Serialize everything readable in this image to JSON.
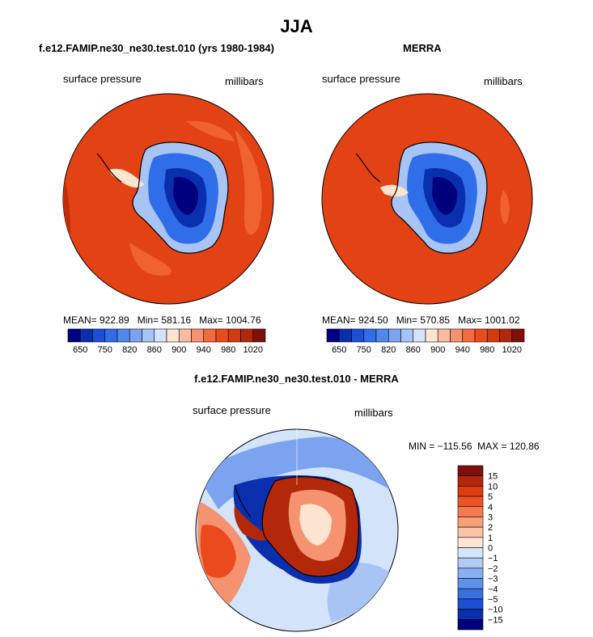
{
  "header": {
    "title": "JJA"
  },
  "panels": {
    "left": {
      "title": "f.e12.FAMIP.ne30_ne30.test.010 (yrs 1980-1984)",
      "label_left": "surface pressure",
      "label_right": "millibars",
      "stats": "MEAN= 922.89   Min= 581.16   Max= 1004.76"
    },
    "right": {
      "title": "MERRA",
      "label_left": "surface pressure",
      "label_right": "millibars",
      "stats": "MEAN= 924.50   Min= 570.85   Max= 1001.02"
    },
    "bottom": {
      "title": "f.e12.FAMIP.ne30_ne30.test.010 - MERRA",
      "label_left": "surface pressure",
      "label_right": "millibars",
      "stats": "MIN = −115.56  MAX = 120.86"
    }
  },
  "chart_data": [
    {
      "type": "heatmap",
      "title": "f.e12.FAMIP.ne30_ne30.test.010 (yrs 1980-1984)",
      "variable": "surface pressure",
      "units": "millibars",
      "mean": 922.89,
      "min": 581.16,
      "max": 1004.76,
      "colorbar_levels": [
        650,
        700,
        750,
        800,
        820,
        840,
        860,
        880,
        900,
        920,
        940,
        960,
        980,
        1000,
        1020
      ],
      "colorbar_tick_labels": [
        "650",
        "750",
        "820",
        "860",
        "900",
        "940",
        "980",
        "1020"
      ]
    },
    {
      "type": "heatmap",
      "title": "MERRA",
      "variable": "surface pressure",
      "units": "millibars",
      "mean": 924.5,
      "min": 570.85,
      "max": 1001.02,
      "colorbar_levels": [
        650,
        700,
        750,
        800,
        820,
        840,
        860,
        880,
        900,
        920,
        940,
        960,
        980,
        1000,
        1020
      ],
      "colorbar_tick_labels": [
        "650",
        "750",
        "820",
        "860",
        "900",
        "940",
        "980",
        "1020"
      ]
    },
    {
      "type": "heatmap",
      "title": "f.e12.FAMIP.ne30_ne30.test.010 - MERRA",
      "variable": "surface pressure",
      "units": "millibars",
      "min": -115.56,
      "max": 120.86,
      "colorbar_tick_labels": [
        "15",
        "10",
        "5",
        "4",
        "3",
        "2",
        "1",
        "0",
        "−1",
        "−2",
        "−3",
        "−4",
        "−5",
        "−10",
        "−15"
      ]
    }
  ],
  "colors": {
    "abs_scale": [
      "#00007f",
      "#0a2fae",
      "#1c4fd6",
      "#2f6ee8",
      "#5087ec",
      "#7ba3f0",
      "#a7c4f5",
      "#d3e3fa",
      "#fde4d0",
      "#f9bca0",
      "#f59270",
      "#f26a42",
      "#ea4a1c",
      "#d33a0e",
      "#b3280a",
      "#7f0f0a"
    ],
    "diff_scale": [
      "#7f0f0a",
      "#b3280a",
      "#dd3c10",
      "#f05228",
      "#f47a50",
      "#f8a078",
      "#fbc4a6",
      "#fde4d3",
      "#d6e6fa",
      "#b0ccf6",
      "#88b0f0",
      "#5f90ea",
      "#3a6fe0",
      "#1c4fd6",
      "#0a2fae",
      "#00007f"
    ],
    "ocean": "#e34214",
    "ocean_light": "#f26a42"
  }
}
